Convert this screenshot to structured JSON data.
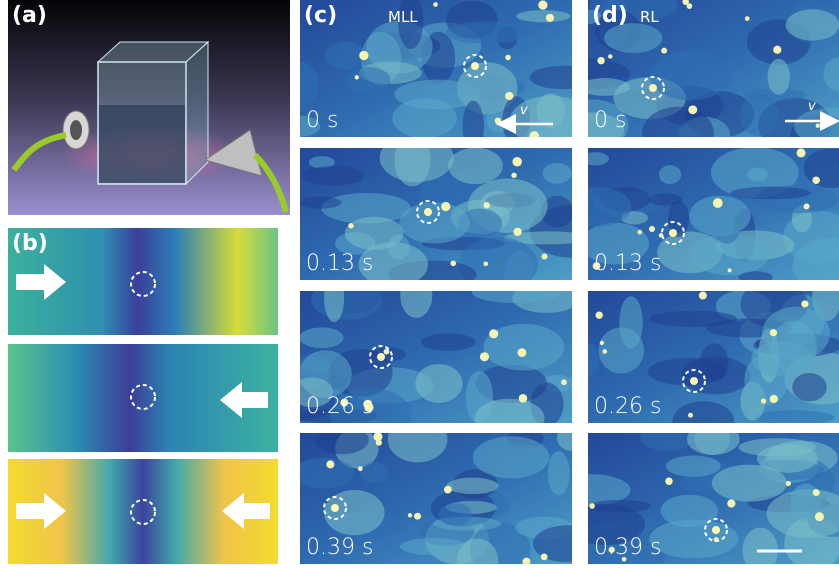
{
  "panels": {
    "a": {
      "label": "(a)"
    },
    "b": {
      "label": "(b)"
    },
    "c": {
      "label": "(c)",
      "mode": "MLL",
      "velocity": "v",
      "frames": [
        "0 s",
        "0.13 s",
        "0.26 s",
        "0.39 s"
      ]
    },
    "d": {
      "label": "(d)",
      "mode": "RL",
      "velocity": "v",
      "frames": [
        "0 s",
        "0.13 s",
        "0.26 s",
        "0.39 s"
      ]
    }
  }
}
